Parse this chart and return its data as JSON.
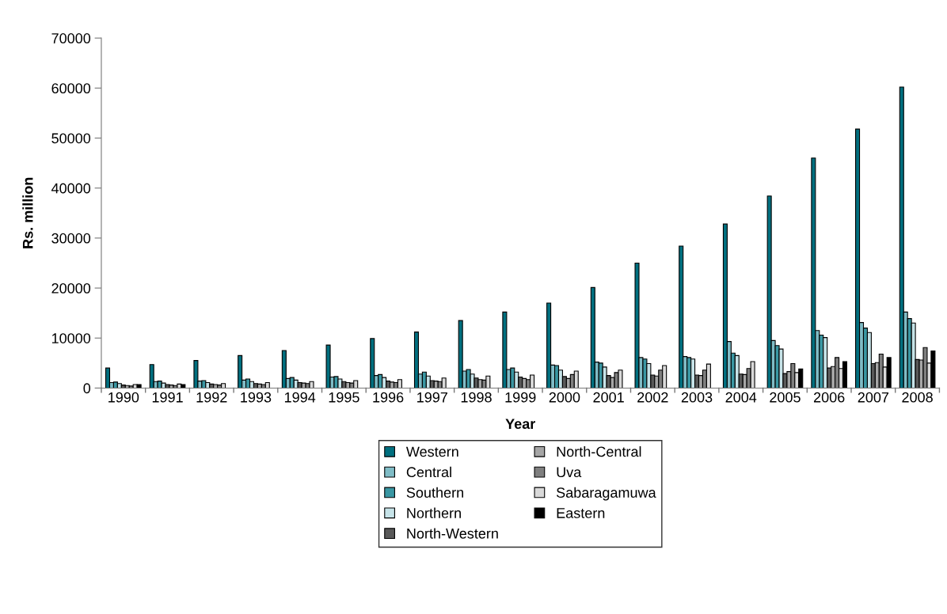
{
  "chart_data": {
    "type": "bar",
    "xlabel": "Year",
    "ylabel": "Rs. million",
    "categories": [
      "1990",
      "1991",
      "1992",
      "1993",
      "1994",
      "1995",
      "1996",
      "1997",
      "1998",
      "1999",
      "2000",
      "2001",
      "2002",
      "2003",
      "2004",
      "2005",
      "2006",
      "2007",
      "2008"
    ],
    "series": [
      {
        "name": "Western",
        "color": "#006f7f",
        "values": [
          4000,
          4700,
          5500,
          6500,
          7500,
          8600,
          9900,
          11200,
          13500,
          15200,
          17000,
          20100,
          25000,
          28400,
          32800,
          38400,
          46000,
          51800,
          60200
        ]
      },
      {
        "name": "Central",
        "color": "#7fbcc6",
        "values": [
          1100,
          1300,
          1400,
          1600,
          1900,
          2200,
          2500,
          2800,
          3400,
          3700,
          4600,
          5200,
          6100,
          6300,
          9300,
          9500,
          11500,
          13100,
          15200
        ]
      },
      {
        "name": "Southern",
        "color": "#3a97a3",
        "values": [
          1200,
          1400,
          1500,
          1800,
          2100,
          2300,
          2700,
          3200,
          3700,
          4000,
          4500,
          5000,
          5800,
          6100,
          7000,
          8500,
          10600,
          12000,
          13900
        ]
      },
      {
        "name": "Northern",
        "color": "#c6e3e8",
        "values": [
          900,
          1000,
          1100,
          1300,
          1600,
          1800,
          2100,
          2400,
          2800,
          3200,
          3600,
          4200,
          4900,
          5800,
          6500,
          7800,
          10100,
          11100,
          13000
        ]
      },
      {
        "name": "North-Western",
        "color": "#595959",
        "values": [
          600,
          700,
          800,
          900,
          1100,
          1300,
          1400,
          1500,
          2000,
          2200,
          2300,
          2500,
          2600,
          2600,
          2800,
          2900,
          4000,
          4900,
          5700
        ]
      },
      {
        "name": "North-Central",
        "color": "#a6a6a6",
        "values": [
          500,
          600,
          700,
          800,
          1000,
          1100,
          1200,
          1400,
          1700,
          1900,
          1900,
          2100,
          2400,
          2500,
          2700,
          3300,
          4300,
          5100,
          5600
        ]
      },
      {
        "name": "Uva",
        "color": "#7f7f7f",
        "values": [
          400,
          500,
          600,
          700,
          900,
          1000,
          1100,
          1300,
          1600,
          1700,
          2700,
          3100,
          3600,
          3600,
          3900,
          4900,
          6100,
          6800,
          8100
        ]
      },
      {
        "name": "Sabaragamuwa",
        "color": "#d9d9d9",
        "values": [
          700,
          800,
          900,
          1100,
          1300,
          1500,
          1700,
          2000,
          2400,
          2600,
          3400,
          3600,
          4500,
          4800,
          5300,
          3100,
          3900,
          4200,
          5000
        ]
      },
      {
        "name": "Eastern",
        "color": "#000000",
        "values": [
          700,
          700,
          null,
          null,
          null,
          null,
          null,
          null,
          null,
          null,
          null,
          null,
          null,
          null,
          null,
          3800,
          5300,
          6100,
          7400
        ]
      }
    ],
    "ylim": [
      0,
      70000
    ],
    "yticks": [
      0,
      10000,
      20000,
      30000,
      40000,
      50000,
      60000,
      70000
    ],
    "grid": false,
    "legend": "bottom"
  }
}
